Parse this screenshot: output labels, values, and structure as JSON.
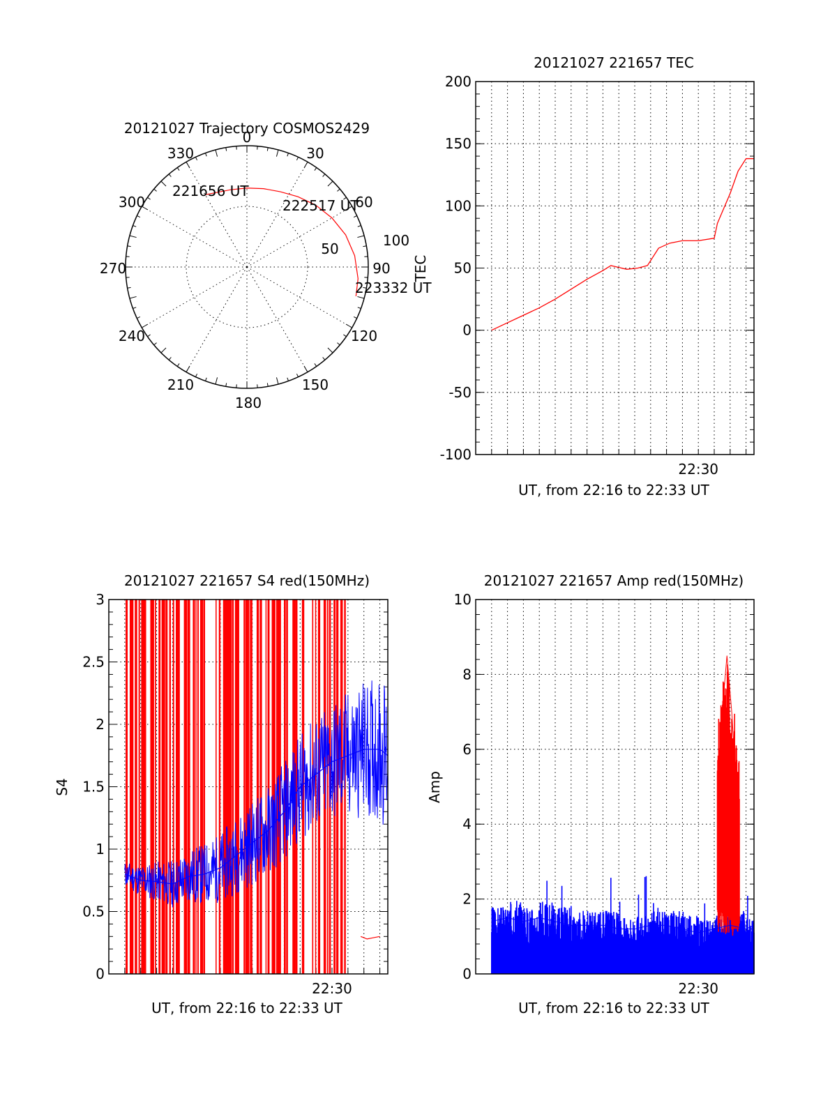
{
  "colors": {
    "red": "#ff0000",
    "blue": "#0000ff"
  },
  "chart_data": [
    {
      "id": "trajectory",
      "type": "polar",
      "title": "20121027 Trajectory COSMOS2429",
      "angle_labels": [
        "0",
        "30",
        "60",
        "90",
        "120",
        "150",
        "180",
        "210",
        "240",
        "270",
        "300",
        "330"
      ],
      "radial_labels": [
        "50",
        "100"
      ],
      "rlim": [
        0,
        100
      ],
      "track": {
        "az": [
          -30,
          -12,
          0,
          12,
          24,
          36,
          48,
          60,
          72,
          84,
          96,
          105
        ],
        "r": [
          74,
          70,
          70,
          71,
          73,
          77,
          82,
          87,
          92,
          96,
          99,
          100
        ]
      },
      "annotations": [
        {
          "text": "221656 UT",
          "az": -30,
          "r": 74
        },
        {
          "text": "222517 UT",
          "az": 48,
          "r": 82
        },
        {
          "text": "223332 UT",
          "az": 105,
          "r": 100
        }
      ],
      "series_color": "red"
    },
    {
      "id": "tec",
      "type": "line",
      "title": "20121027 221657 TEC",
      "ylabel": "TEC",
      "xlabel": "UT, from 22:16 to 22:33 UT",
      "xlim_min": [
        16.0,
        33.5
      ],
      "ylim": [
        -100,
        200
      ],
      "yticks": [
        "-100",
        "-50",
        "0",
        "50",
        "100",
        "150",
        "200"
      ],
      "xtick_label": "22:30",
      "xtick_value": 30,
      "series": [
        {
          "x": [
            17.0,
            18.0,
            19.0,
            20.0,
            21.0,
            22.0,
            23.0,
            24.0,
            24.5,
            25.5,
            26.2,
            26.8,
            27.5,
            28.2,
            29.0,
            30.0,
            31.0,
            31.2,
            31.5,
            32.0,
            32.5,
            33.0,
            33.5
          ],
          "y": [
            0,
            6,
            12,
            18,
            25,
            33,
            41,
            48,
            52,
            49,
            50,
            52,
            66,
            70,
            72,
            72,
            74,
            86,
            95,
            110,
            128,
            138,
            138
          ],
          "color": "red"
        }
      ]
    },
    {
      "id": "s4",
      "type": "line",
      "title": "20121027 221657 S4 red(150MHz)",
      "ylabel": "S4",
      "xlabel": "UT, from 22:16 to 22:33 UT",
      "xlim_min": [
        16.0,
        33.5
      ],
      "ylim": [
        0,
        3
      ],
      "yticks": [
        "0",
        "0.5",
        "1",
        "1.5",
        "2",
        "2.5",
        "3"
      ],
      "xtick_label": "22:30",
      "xtick_value": 30,
      "series": [
        {
          "name": "",
          "color": "blue",
          "x": [
            17.0,
            18.0,
            19.0,
            20.0,
            21.0,
            22.0,
            23.0,
            24.0,
            25.0,
            26.0,
            27.0,
            28.0,
            29.0,
            30.0,
            31.0,
            32.0,
            33.0,
            33.5
          ],
          "y": [
            0.8,
            0.75,
            0.74,
            0.72,
            0.78,
            0.8,
            0.85,
            0.95,
            1.05,
            1.15,
            1.3,
            1.5,
            1.6,
            1.7,
            1.75,
            1.8,
            1.8,
            1.75
          ]
        },
        {
          "name": "",
          "color": "red",
          "x": [
            31.8,
            32.2,
            32.6,
            33.0
          ],
          "y": [
            0.3,
            0.28,
            0.29,
            0.3
          ]
        }
      ]
    },
    {
      "id": "amp",
      "type": "line",
      "title": "20121027 221657 Amp red(150MHz)",
      "ylabel": "Amp",
      "xlabel": "UT, from 22:16 to 22:33 UT",
      "xlim_min": [
        16.0,
        33.5
      ],
      "ylim": [
        0,
        10
      ],
      "yticks": [
        "0",
        "2",
        "4",
        "6",
        "8",
        "10"
      ],
      "xtick_label": "22:30",
      "xtick_value": 30,
      "series": [
        {
          "name": "",
          "color": "blue",
          "x": [
            17.0,
            18.0,
            19.0,
            20.0,
            21.0,
            22.0,
            23.0,
            24.0,
            25.0,
            26.0,
            27.0,
            28.0,
            29.0,
            30.0,
            31.0,
            32.0,
            33.0,
            33.5
          ],
          "y": [
            1.4,
            1.5,
            1.4,
            1.5,
            1.4,
            1.3,
            1.3,
            1.3,
            1.2,
            1.2,
            1.3,
            1.3,
            1.2,
            1.1,
            1.2,
            1.3,
            1.2,
            1.3
          ]
        },
        {
          "name": "",
          "color": "red",
          "x": [
            31.2,
            31.5,
            31.8,
            32.1,
            32.4
          ],
          "y": [
            4.5,
            7.0,
            8.5,
            7.0,
            5.0
          ]
        }
      ]
    }
  ]
}
